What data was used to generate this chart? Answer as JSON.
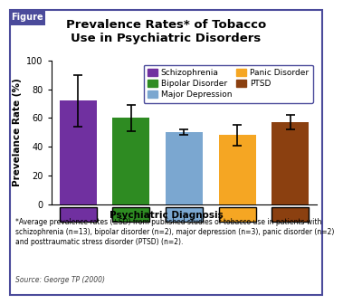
{
  "title": "Prevalence Rates* of Tobacco\nUse in Psychiatric Disorders",
  "xlabel": "Psychiatric Diagnosis",
  "ylabel": "Prevelance Rate (%)",
  "categories": [
    "Schizophrenia",
    "Bipolar Disorder",
    "Major Depression",
    "Panic Disorder",
    "PTSD"
  ],
  "values": [
    72,
    60,
    50,
    48,
    57
  ],
  "errors": [
    18,
    9,
    2,
    7,
    5
  ],
  "bar_colors": [
    "#7030A0",
    "#2E8B22",
    "#7BA7D0",
    "#F5A623",
    "#8B4010"
  ],
  "ylim": [
    0,
    100
  ],
  "yticks": [
    0,
    20,
    40,
    60,
    80,
    100
  ],
  "legend_labels_col1": [
    "Schizophrenia",
    "Bipolar Disorder",
    "Major Depression"
  ],
  "legend_labels_col2": [
    "Panic Disorder",
    "PTSD"
  ],
  "legend_colors_col1": [
    "#7030A0",
    "#2E8B22",
    "#7BA7D0"
  ],
  "legend_colors_col2": [
    "#F5A623",
    "#8B4010"
  ],
  "footnote": "*Average prevalence rates (±SD) from published studies of tobacco use in patients with\nschizophrenia (n=13), bipolar disorder (n=2), major depression (n=3), panic disorder (n=2)\nand posttraumatic stress disorder (PTSD) (n=2).",
  "source": "Source: George TP (2000)",
  "figure_label": "Figure",
  "bg_color": "#FFFFFF",
  "plot_bg_color": "#FFFFFF",
  "border_color": "#4B4B9B",
  "figure_label_bg": "#4B4B9B",
  "title_fontsize": 9.5,
  "axis_label_fontsize": 7.5,
  "tick_fontsize": 7,
  "legend_fontsize": 6.5,
  "footnote_fontsize": 5.5,
  "source_fontsize": 5.5
}
